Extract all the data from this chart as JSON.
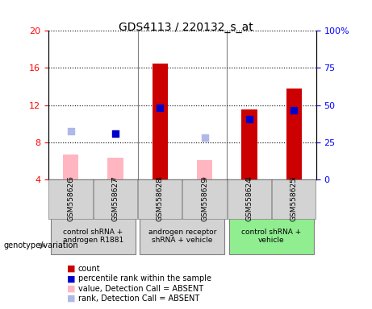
{
  "title": "GDS4113 / 220132_s_at",
  "samples": [
    "GSM558626",
    "GSM558627",
    "GSM558628",
    "GSM558629",
    "GSM558624",
    "GSM558625"
  ],
  "groups": [
    {
      "label": "control shRNA +\nandrogen R1881",
      "samples": [
        0,
        1
      ],
      "color": "#d8f0d8"
    },
    {
      "label": "androgen receptor\nshRNA + vehicle",
      "samples": [
        2,
        3
      ],
      "color": "#d8f0d8"
    },
    {
      "label": "control shRNA +\nvehicle",
      "samples": [
        4,
        5
      ],
      "color": "#90ee90"
    }
  ],
  "group_colors": [
    "#d3d3d3",
    "#d3d3d3",
    "#90ee90"
  ],
  "ylim_left": [
    4,
    20
  ],
  "ylim_right": [
    0,
    100
  ],
  "yticks_left": [
    4,
    8,
    12,
    16,
    20
  ],
  "yticks_right": [
    0,
    25,
    50,
    75,
    100
  ],
  "count_values": [
    null,
    null,
    16.5,
    null,
    11.5,
    13.8
  ],
  "count_color": "#cc0000",
  "percentile_values": [
    null,
    8.9,
    11.7,
    null,
    10.5,
    11.4
  ],
  "percentile_color": "#0000cc",
  "value_absent": [
    6.7,
    6.3,
    null,
    6.1,
    null,
    null
  ],
  "value_absent_color": "#ffb6c1",
  "rank_absent": [
    9.2,
    null,
    null,
    8.5,
    null,
    null
  ],
  "rank_absent_color": "#b0b8e8",
  "bar_width": 0.35,
  "small_square_size": 40,
  "legend_items": [
    {
      "color": "#cc0000",
      "label": "count"
    },
    {
      "color": "#0000cc",
      "label": "percentile rank within the sample"
    },
    {
      "color": "#ffb6c1",
      "label": "value, Detection Call = ABSENT"
    },
    {
      "color": "#b0b8e8",
      "label": "rank, Detection Call = ABSENT"
    }
  ]
}
